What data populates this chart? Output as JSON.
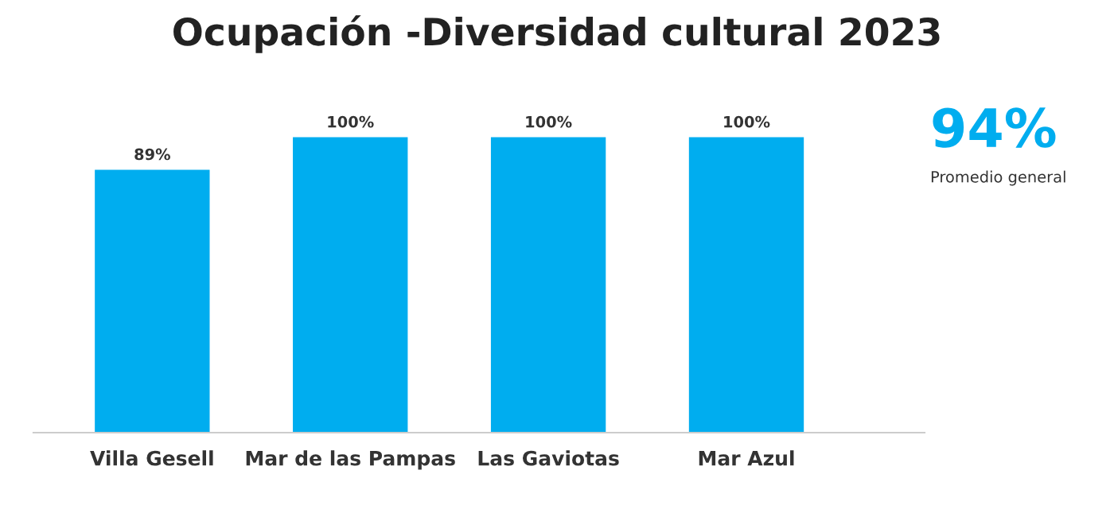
{
  "chart_data": {
    "type": "bar",
    "title": "Ocupación -Diversidad cultural 2023",
    "categories": [
      "Villa Gesell",
      "Mar de las Pampas",
      "Las Gaviotas",
      "Mar Azul"
    ],
    "values": [
      89,
      100,
      100,
      100
    ],
    "color": "#00adef",
    "value_labels": [
      "89%",
      "100%",
      "100%",
      "100%"
    ],
    "annotations": [
      "94%",
      "Promedio general"
    ],
    "grid": false,
    "legend": false
  }
}
